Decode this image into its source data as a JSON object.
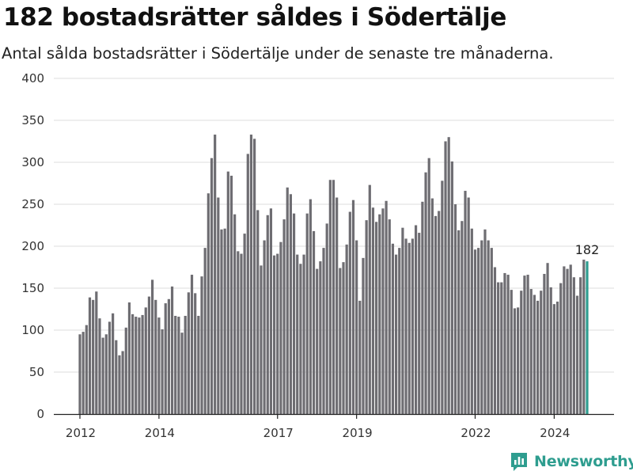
{
  "header": {
    "title": "182 bostadsrätter såldes i Södertälje",
    "subtitle": "Antal sålda bostadsrätter i Södertälje under de senaste tre månaderna."
  },
  "brand": {
    "name": "Newsworthy",
    "icon": "newsworthy-logo-icon",
    "color": "#2e9d8f"
  },
  "chart_data": {
    "type": "bar",
    "title": "182 bostadsrätter såldes i Södertälje",
    "subtitle": "Antal sålda bostadsrätter i Södertälje under de senaste tre månaderna.",
    "xlabel": "",
    "ylabel": "",
    "ylim": [
      0,
      400
    ],
    "yticks": [
      0,
      50,
      100,
      150,
      200,
      250,
      300,
      350,
      400
    ],
    "xticks": [
      "2012",
      "2014",
      "2017",
      "2019",
      "2022",
      "2024"
    ],
    "grid": true,
    "bar_color": "#6e6d72",
    "highlight_color": "#2e9d8f",
    "highlight_label": "182",
    "period": "monthly, rolling three-month total, Jan 2012 – latest month",
    "values": [
      95,
      98,
      106,
      139,
      136,
      146,
      114,
      91,
      95,
      110,
      120,
      88,
      70,
      75,
      103,
      133,
      119,
      116,
      115,
      118,
      127,
      140,
      160,
      136,
      115,
      101,
      132,
      137,
      152,
      117,
      116,
      97,
      117,
      145,
      166,
      144,
      117,
      164,
      198,
      263,
      305,
      333,
      258,
      220,
      221,
      289,
      284,
      238,
      194,
      191,
      215,
      310,
      333,
      328,
      243,
      177,
      207,
      237,
      245,
      189,
      191,
      205,
      232,
      270,
      262,
      239,
      190,
      179,
      190,
      239,
      256,
      218,
      173,
      182,
      198,
      227,
      279,
      279,
      258,
      174,
      181,
      202,
      241,
      255,
      207,
      135,
      186,
      231,
      273,
      246,
      229,
      238,
      245,
      254,
      232,
      203,
      190,
      198,
      222,
      209,
      204,
      209,
      225,
      216,
      253,
      288,
      305,
      257,
      236,
      242,
      278,
      325,
      330,
      301,
      250,
      219,
      230,
      266,
      258,
      221,
      196,
      198,
      207,
      220,
      207,
      198,
      175,
      157,
      157,
      168,
      166,
      148,
      126,
      127,
      147,
      165,
      166,
      149,
      142,
      135,
      147,
      167,
      180,
      151,
      131,
      134,
      156,
      176,
      173,
      178,
      163,
      141,
      163,
      184,
      182
    ]
  }
}
